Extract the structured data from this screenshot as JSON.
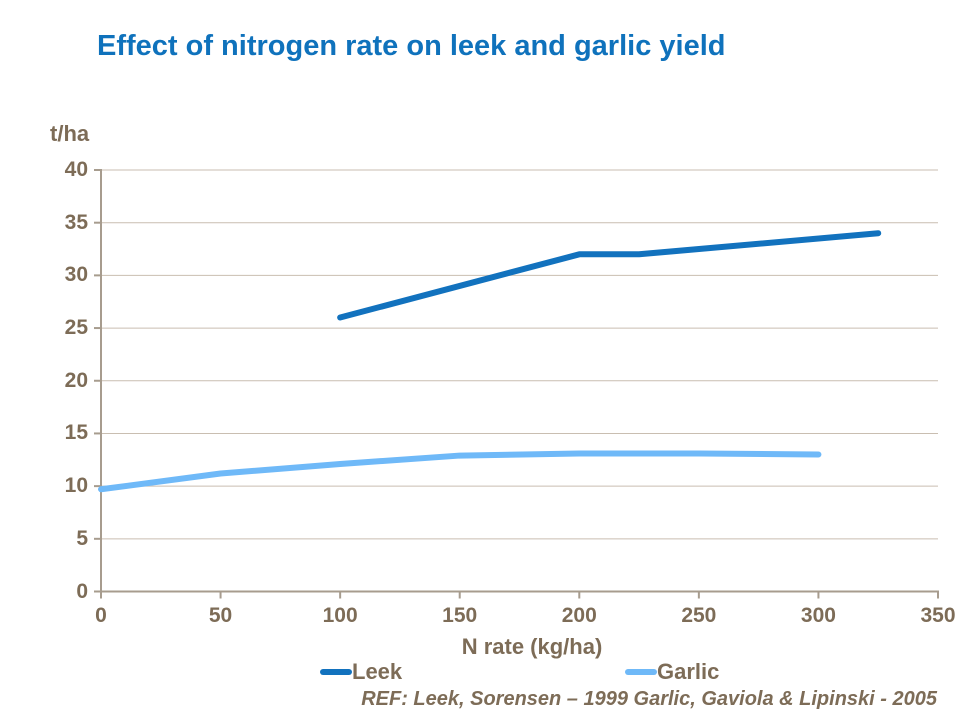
{
  "slide": {
    "title": "Effect of nitrogen rate on leek and garlic yield",
    "reference": "REF: Leek, Sorensen – 1999 Garlic, Gaviola & Lipinski - 2005"
  },
  "chart_data": {
    "type": "line",
    "title": "Effect of nitrogen rate on leek and garlic yield",
    "ylabel_unit": "t/ha",
    "xlabel": "N rate (kg/ha)",
    "xlim": [
      0,
      350
    ],
    "ylim": [
      0,
      40
    ],
    "x_ticks": [
      0,
      50,
      100,
      150,
      200,
      250,
      300,
      350
    ],
    "y_ticks": [
      0,
      5,
      10,
      15,
      20,
      25,
      30,
      35,
      40
    ],
    "grid": "horizontal",
    "legend_position": "bottom",
    "series": [
      {
        "name": "Leek",
        "color": "#1272BE",
        "x": [
          100,
          200,
          225,
          325
        ],
        "y": [
          26,
          32,
          32,
          34
        ]
      },
      {
        "name": "Garlic",
        "color": "#6FB9F8",
        "x": [
          0,
          50,
          100,
          150,
          200,
          250,
          300
        ],
        "y": [
          9.7,
          11.2,
          12.1,
          12.9,
          13.1,
          13.1,
          13
        ]
      }
    ]
  },
  "colors": {
    "title": "#0F72BC",
    "axis_text": "#7D6C57",
    "grid": "#C9BEB1",
    "axis_line": "#A79C8E",
    "leek": "#1272BE",
    "garlic": "#6FB9F8"
  }
}
